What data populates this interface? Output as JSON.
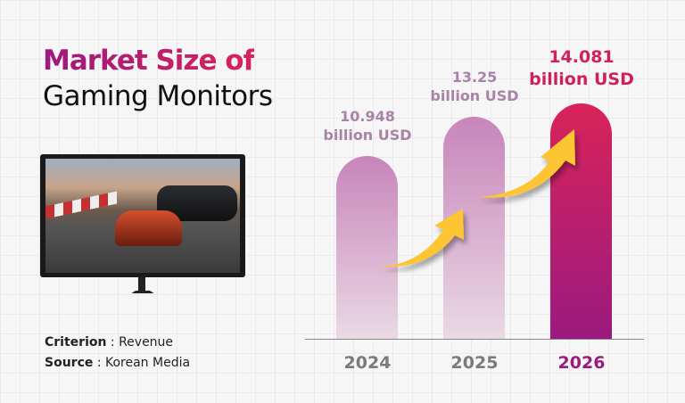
{
  "title": {
    "line1": "Market Size of",
    "line2": "Gaming Monitors"
  },
  "meta": {
    "criterion_label": "Criterion",
    "criterion_value": " : Revenue",
    "source_label": "Source",
    "source_value": " : Korean Media"
  },
  "colors": {
    "accent": "#c9185f",
    "light_bar": "#c785ba",
    "arrow": "#fdc530"
  },
  "chart_data": {
    "type": "bar",
    "categories": [
      "2024",
      "2025",
      "2026"
    ],
    "values": [
      10.948,
      13.25,
      14.081
    ],
    "value_labels": [
      "10.948",
      "13.25",
      "14.081"
    ],
    "unit_label": "billion USD",
    "ylim": [
      0,
      14.5
    ],
    "grid": false,
    "highlight": "2026"
  }
}
